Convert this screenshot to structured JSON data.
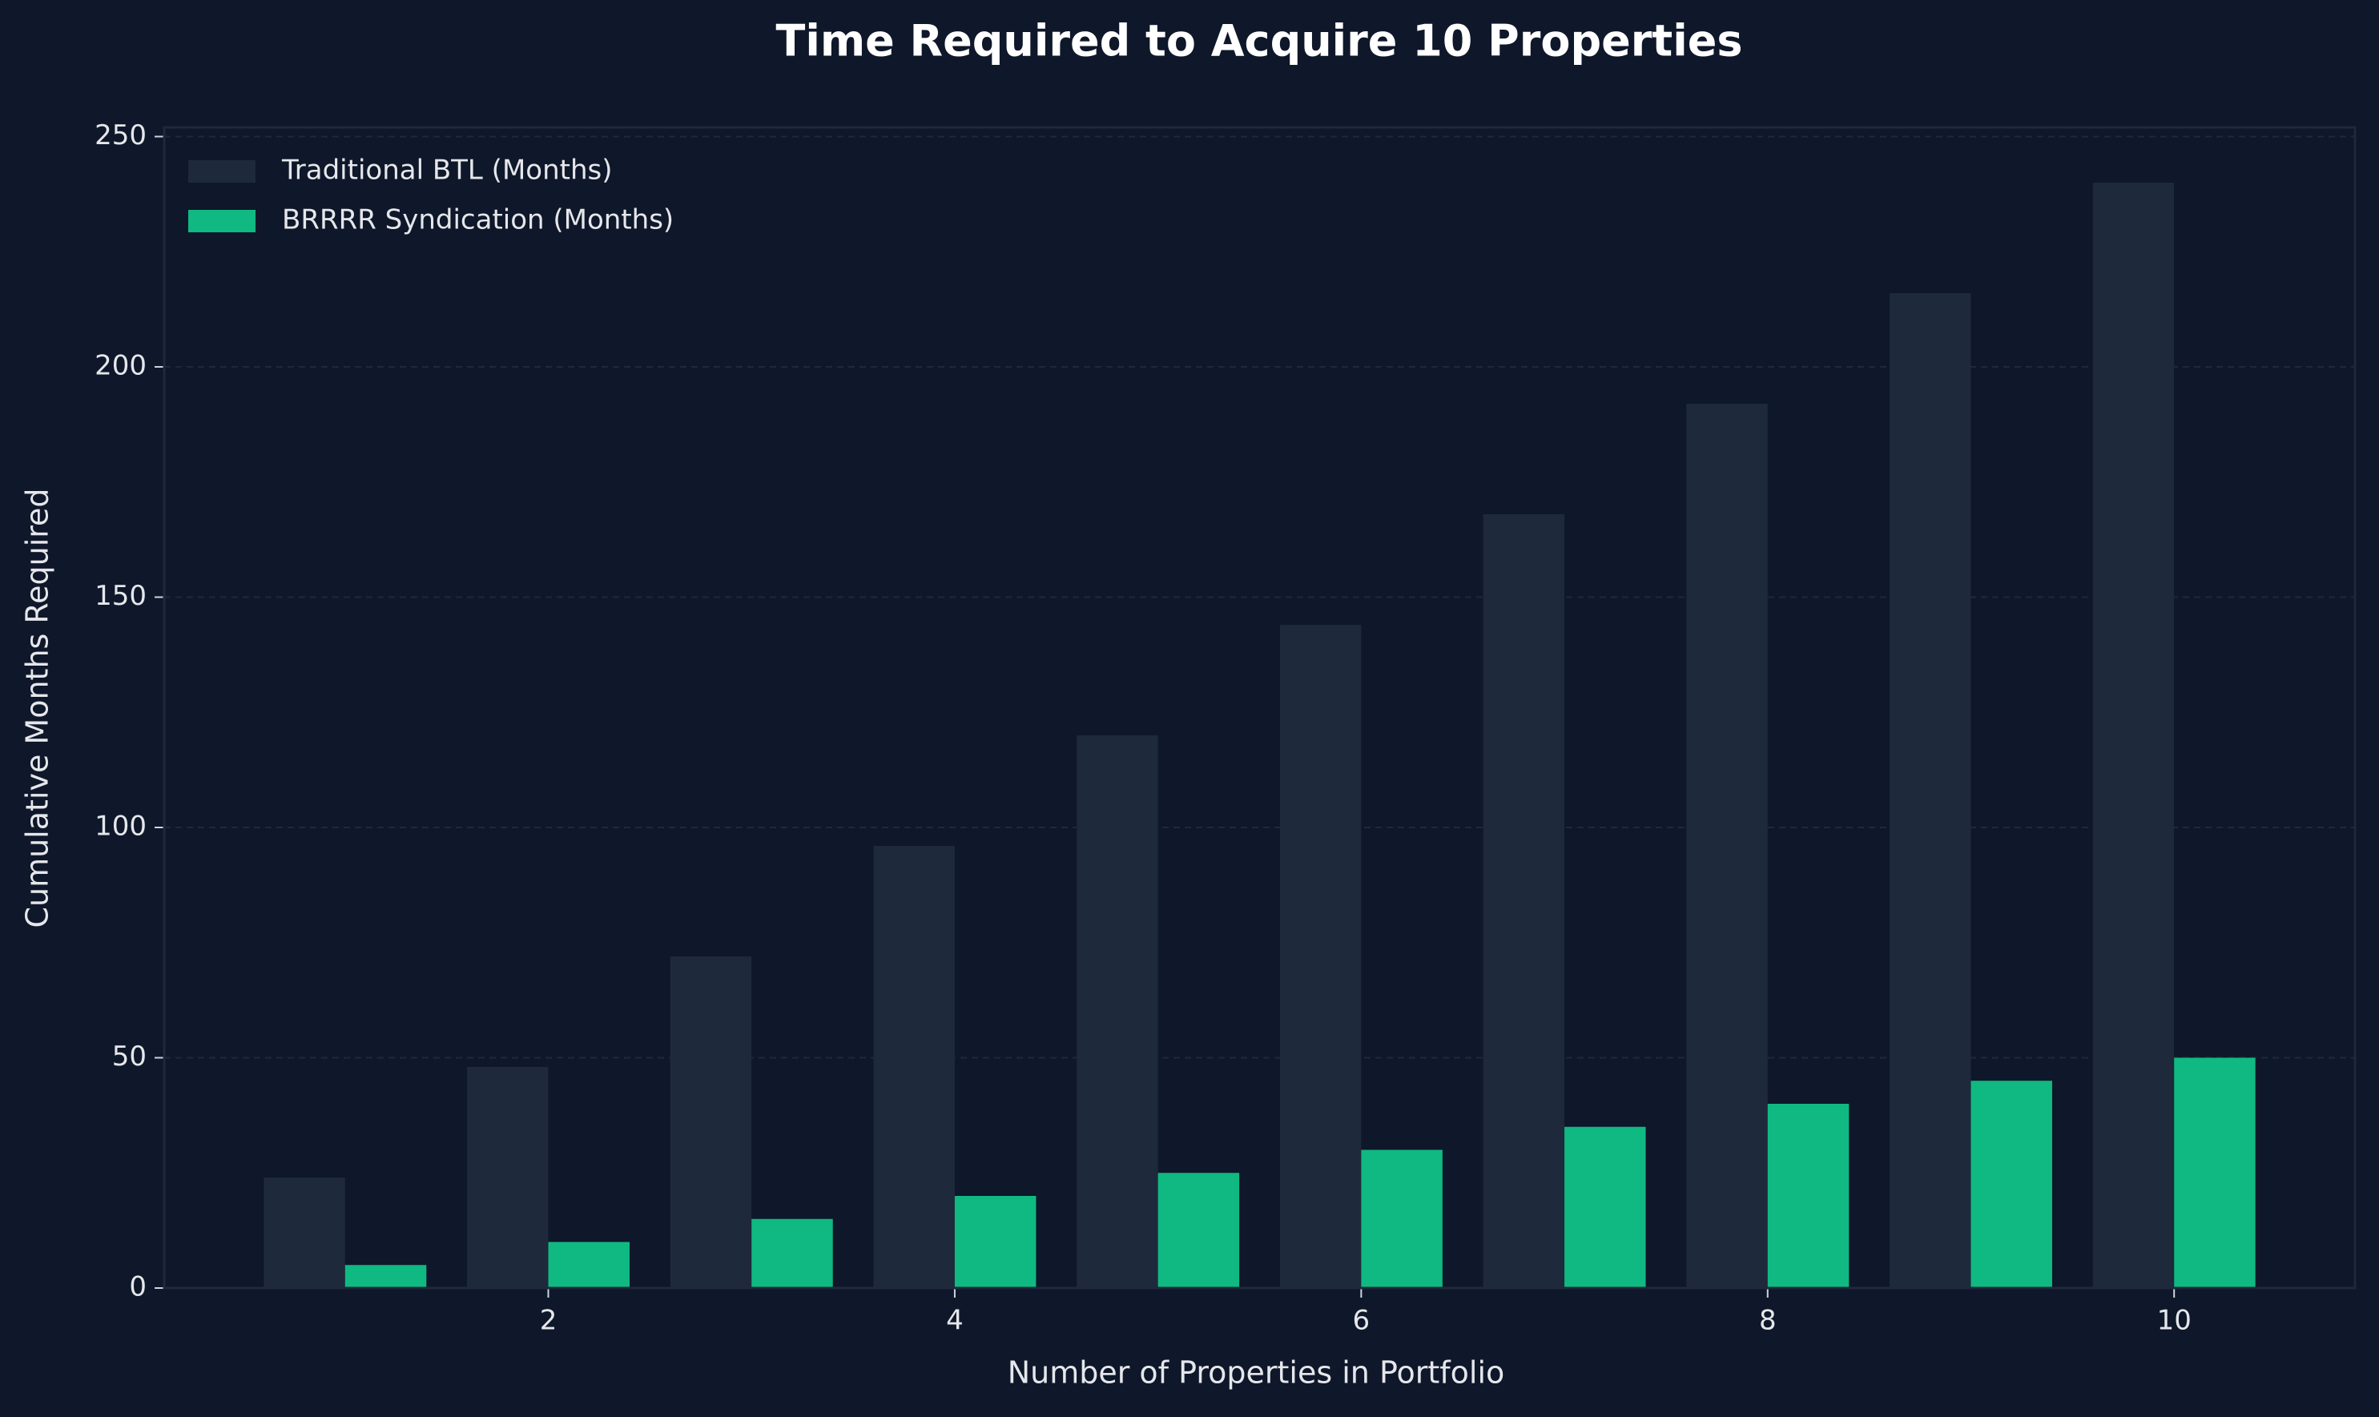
{
  "chart_data": {
    "type": "bar",
    "title": "Time Required to Acquire 10 Properties",
    "x_label": "Number of Properties in Portfolio",
    "y_label": "Cumulative Months Required",
    "x": [
      1,
      2,
      3,
      4,
      5,
      6,
      7,
      8,
      9,
      10
    ],
    "series": [
      {
        "name": "Traditional BTL (Months)",
        "color": "#1e293b",
        "values": [
          24,
          48,
          72,
          96,
          120,
          144,
          168,
          192,
          216,
          240
        ]
      },
      {
        "name": "BRRRR Syndication (Months)",
        "color": "#10b981",
        "values": [
          5,
          10,
          15,
          20,
          25,
          30,
          35,
          40,
          45,
          50
        ]
      }
    ],
    "xlim": [
      0.11,
      10.89
    ],
    "xticks": [
      2,
      4,
      6,
      8,
      10
    ],
    "ylim": [
      0,
      252
    ],
    "yticks": [
      0,
      50,
      100,
      150,
      200,
      250
    ],
    "grid": true,
    "legend": "upper left"
  }
}
